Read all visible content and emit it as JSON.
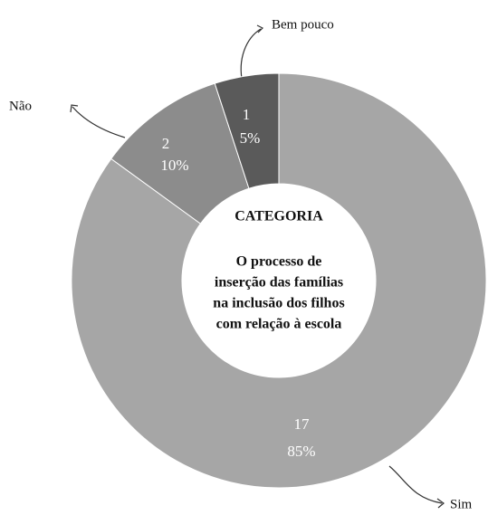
{
  "chart_data": {
    "type": "donut",
    "center_title": "CATEGORIA",
    "center_text": [
      "O processo de",
      "inserção das famílias",
      "na inclusão dos filhos",
      "com relação à escola"
    ],
    "categories": [
      "Sim",
      "Não",
      "Bem pouco"
    ],
    "values": [
      17,
      2,
      1
    ],
    "percent_labels": [
      "85%",
      "10%",
      "5%"
    ],
    "colors": [
      "#a6a6a6",
      "#8c8c8c",
      "#5a5a5a"
    ]
  }
}
